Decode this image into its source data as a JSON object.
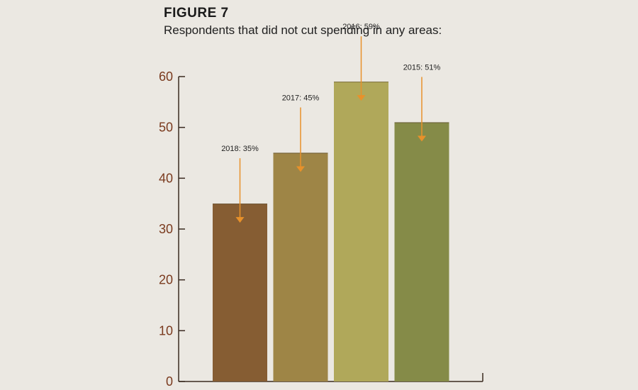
{
  "figure_label": "FIGURE 7",
  "title": "Respondents that did not cut spending in any areas:",
  "chart_data": {
    "type": "bar",
    "title": "Respondents that did not cut spending in any areas:",
    "categories": [
      "2018",
      "2017",
      "2016",
      "2015"
    ],
    "values": [
      35,
      45,
      59,
      51
    ],
    "data_labels": [
      "2018: 35%",
      "2017: 45%",
      "2016: 59%",
      "2015: 51%"
    ],
    "bar_colors": [
      "#865d33",
      "#9e8546",
      "#b0a85a",
      "#858b48"
    ],
    "arrow_color": "#e8912a",
    "axis_color": "#3a2a20",
    "tick_color": "#7a3a1e",
    "ylim": [
      0,
      60
    ],
    "yticks": [
      0,
      10,
      20,
      30,
      40,
      50,
      60
    ],
    "xlabel": "",
    "ylabel": "",
    "grid": false,
    "legend": "none"
  }
}
